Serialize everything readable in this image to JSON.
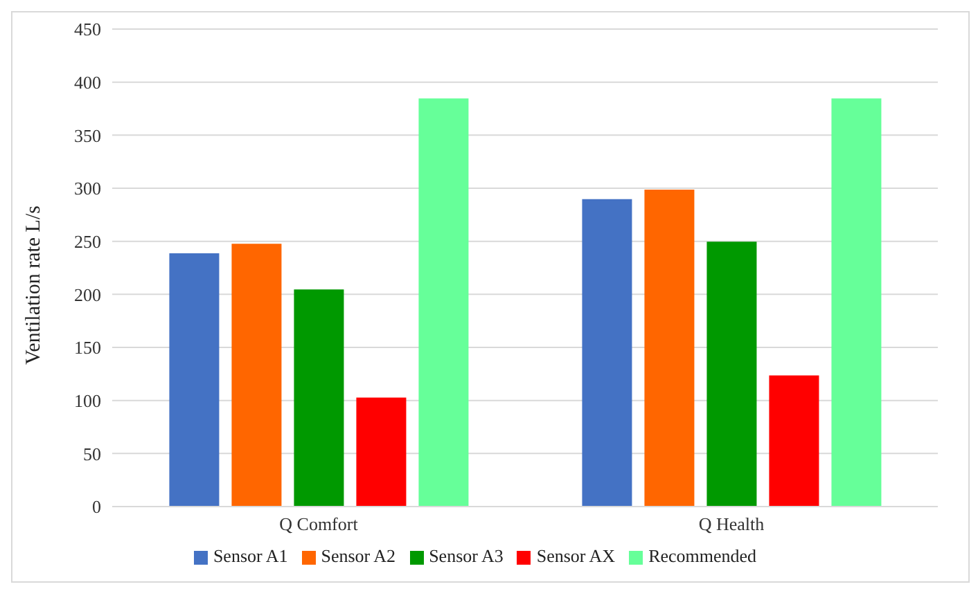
{
  "chart_data": {
    "type": "bar",
    "ylabel": "Ventilation rate L/s",
    "categories": [
      "Q Comfort",
      "Q Health"
    ],
    "series": [
      {
        "name": "Sensor A1",
        "color": "#4472c4",
        "values": [
          238,
          289
        ]
      },
      {
        "name": "Sensor A2",
        "color": "#ff6600",
        "values": [
          247,
          298
        ]
      },
      {
        "name": "Sensor A3",
        "color": "#009900",
        "values": [
          204,
          249
        ]
      },
      {
        "name": "Sensor AX",
        "color": "#ff0000",
        "values": [
          102,
          123
        ]
      },
      {
        "name": "Recommended",
        "color": "#66ff99",
        "values": [
          384,
          384
        ]
      }
    ],
    "ylim": [
      0,
      450
    ],
    "yticks": [
      0,
      50,
      100,
      150,
      200,
      250,
      300,
      350,
      400,
      450
    ],
    "grid": "y",
    "legend": "bottom"
  }
}
